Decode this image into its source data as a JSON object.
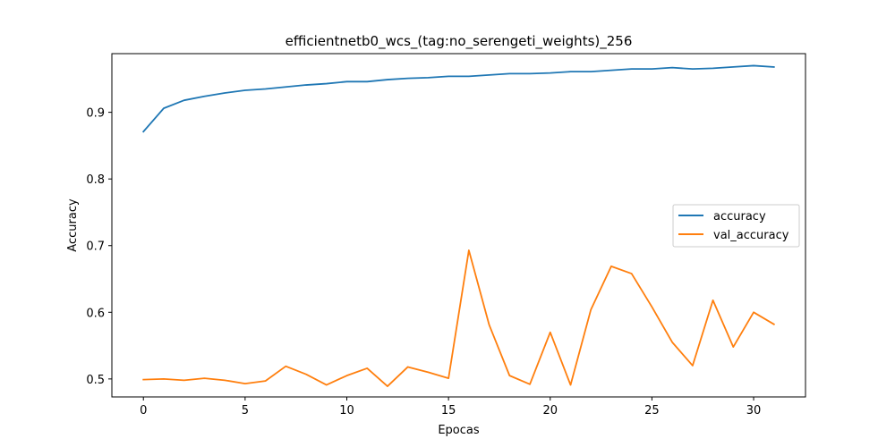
{
  "chart_data": {
    "type": "line",
    "title": "efficientnetb0_wcs_(tag:no_serengeti_weights)_256",
    "xlabel": "Epocas",
    "ylabel": "Accuracy",
    "xlim": [
      -1.55,
      32.55
    ],
    "ylim": [
      0.473,
      0.988
    ],
    "xticks": [
      0,
      5,
      10,
      15,
      20,
      25,
      30
    ],
    "yticks": [
      0.5,
      0.6,
      0.7,
      0.8,
      0.9
    ],
    "ytick_labels": [
      "0.5",
      "0.6",
      "0.7",
      "0.8",
      "0.9"
    ],
    "legend_position": "center-right",
    "grid": false,
    "x": [
      0,
      1,
      2,
      3,
      4,
      5,
      6,
      7,
      8,
      9,
      10,
      11,
      12,
      13,
      14,
      15,
      16,
      17,
      18,
      19,
      20,
      21,
      22,
      23,
      24,
      25,
      26,
      27,
      28,
      29,
      30,
      31
    ],
    "series": [
      {
        "name": "accuracy",
        "color": "#1f77b4",
        "values": [
          0.871,
          0.906,
          0.918,
          0.924,
          0.929,
          0.933,
          0.935,
          0.938,
          0.941,
          0.943,
          0.946,
          0.946,
          0.949,
          0.951,
          0.952,
          0.954,
          0.954,
          0.956,
          0.958,
          0.958,
          0.959,
          0.961,
          0.961,
          0.963,
          0.965,
          0.965,
          0.967,
          0.965,
          0.966,
          0.968,
          0.97,
          0.968
        ]
      },
      {
        "name": "val_accuracy",
        "color": "#ff7f0e",
        "values": [
          0.499,
          0.5,
          0.498,
          0.501,
          0.498,
          0.493,
          0.497,
          0.519,
          0.507,
          0.491,
          0.505,
          0.516,
          0.489,
          0.518,
          0.51,
          0.501,
          0.693,
          0.581,
          0.505,
          0.492,
          0.57,
          0.491,
          0.604,
          0.669,
          0.658,
          0.608,
          0.555,
          0.52,
          0.618,
          0.548,
          0.6,
          0.582
        ]
      }
    ]
  }
}
